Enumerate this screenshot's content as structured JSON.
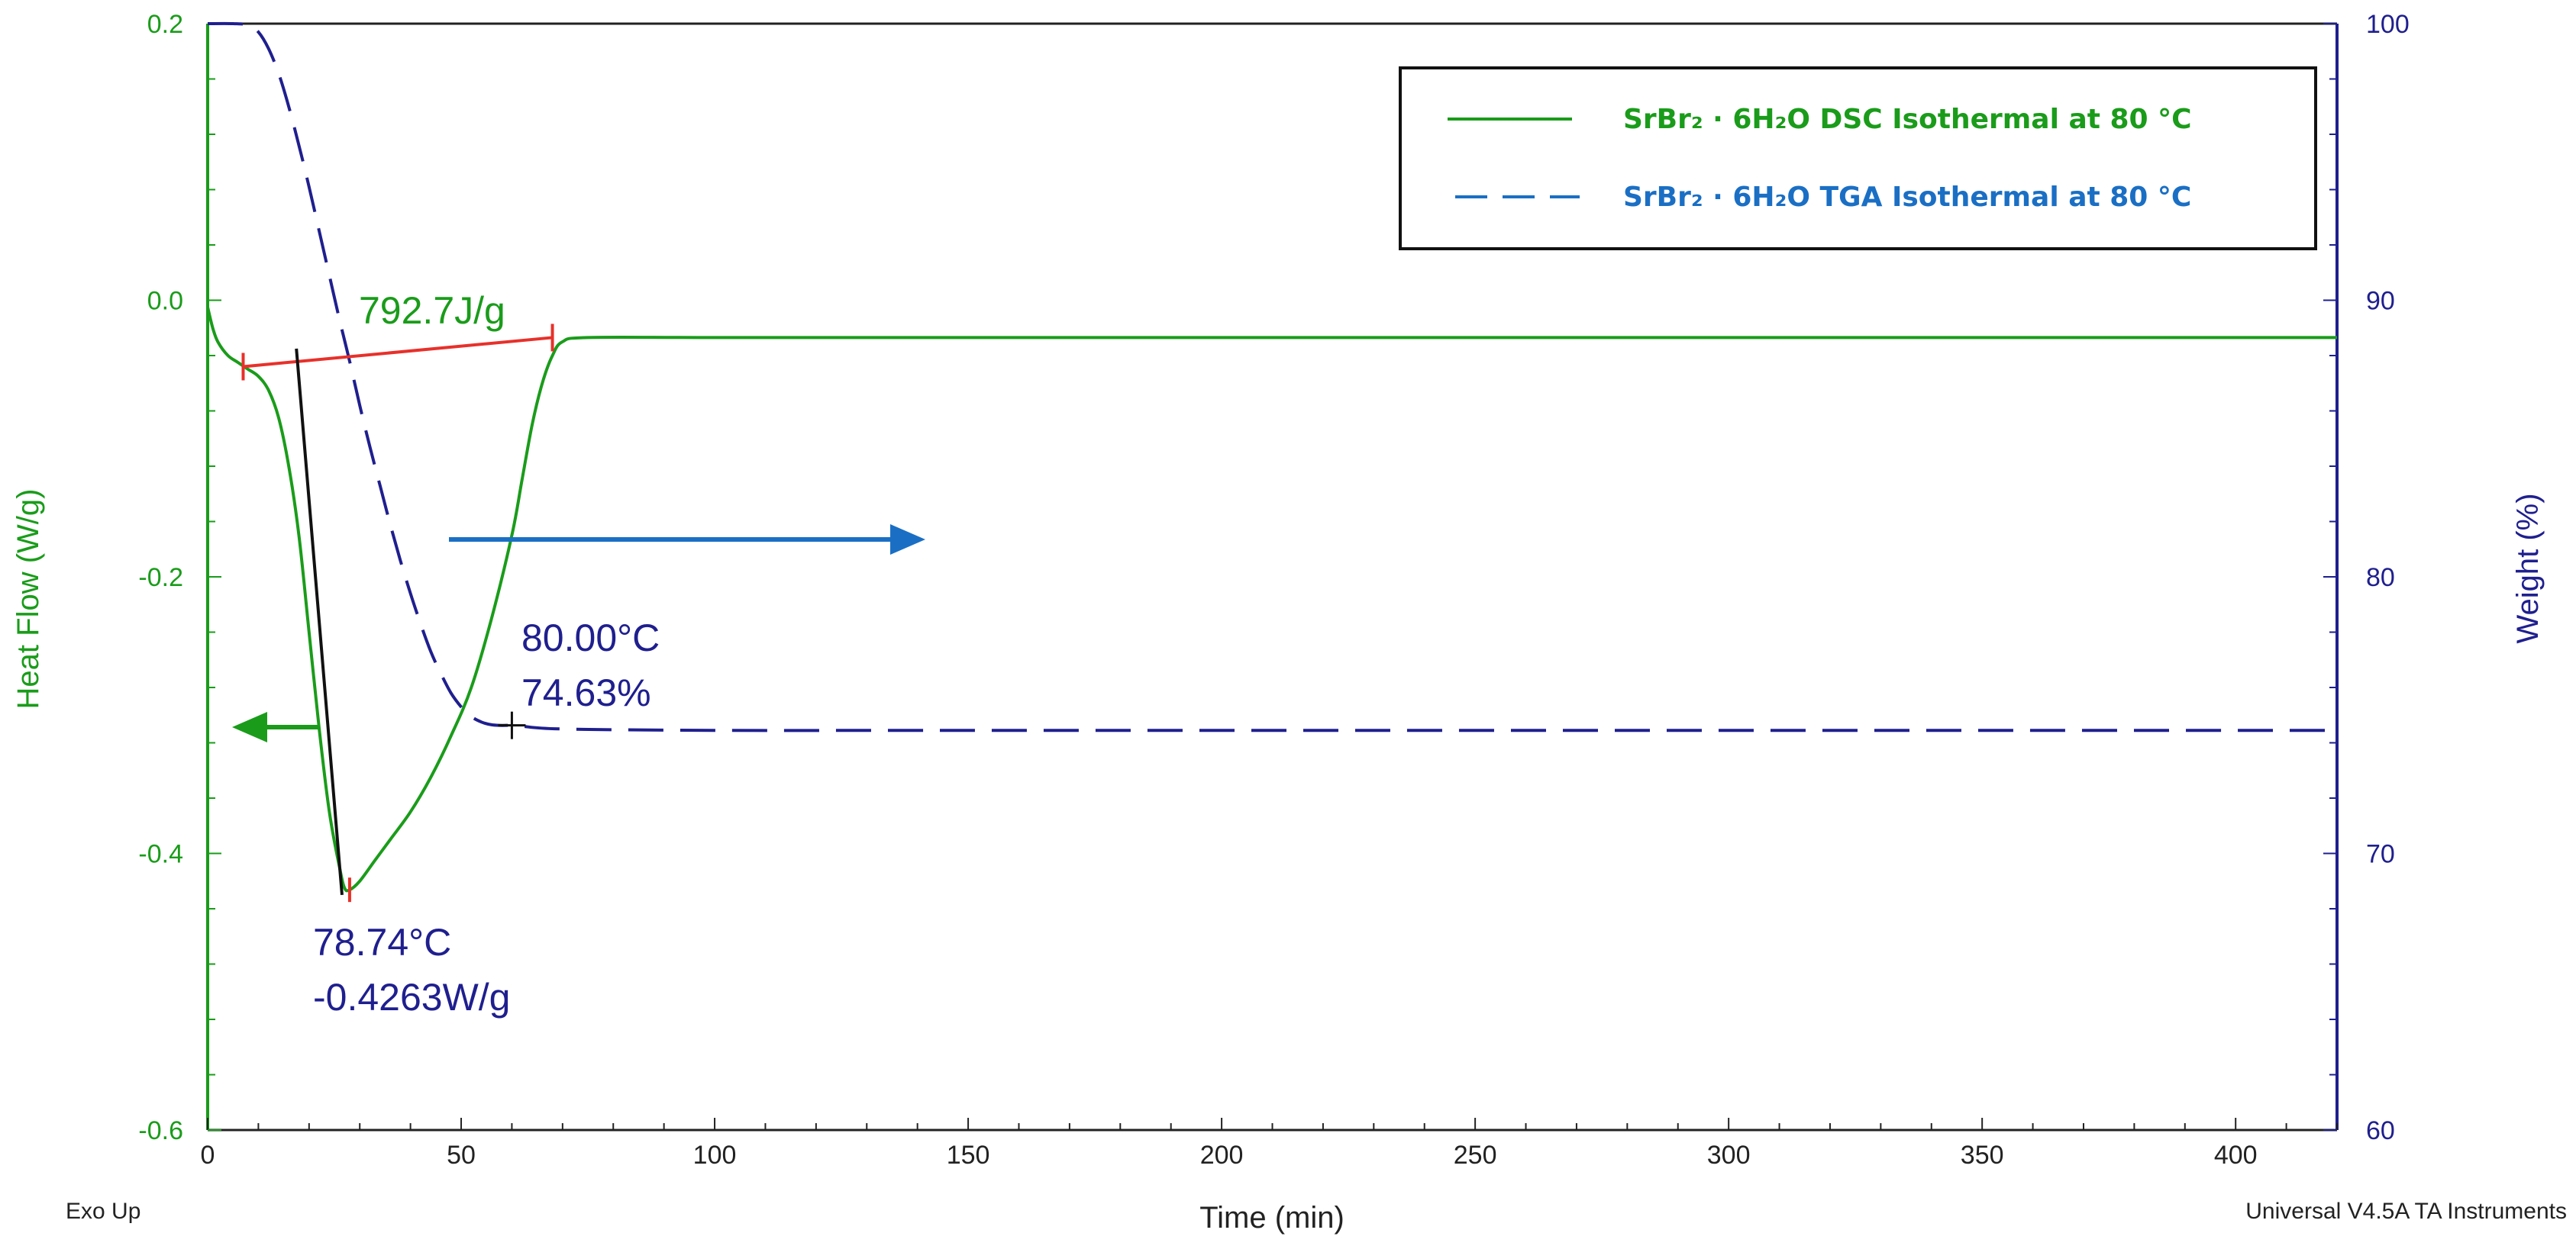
{
  "chart_data": {
    "type": "line",
    "x_axis": {
      "title": "Time (min)",
      "range": [
        0,
        420
      ],
      "ticks": [
        0,
        50,
        100,
        150,
        200,
        250,
        300,
        350,
        400
      ],
      "tick_labels": [
        "0",
        "50",
        "100",
        "150",
        "200",
        "250",
        "300",
        "350",
        "400"
      ]
    },
    "y_left": {
      "title": "Heat Flow (W/g)",
      "range": [
        -0.6,
        0.2
      ],
      "ticks": [
        0.2,
        0.0,
        -0.2,
        -0.4,
        -0.6
      ],
      "tick_labels": [
        "0.2",
        "0.0",
        "-0.2",
        "-0.4",
        "-0.6"
      ],
      "color": "#1a9c1a"
    },
    "y_right": {
      "title": "Weight (%)",
      "range": [
        60,
        100
      ],
      "ticks": [
        100,
        90,
        80,
        70,
        60
      ],
      "tick_labels": [
        "100",
        "90",
        "80",
        "70",
        "60"
      ],
      "color": "#1f1f8f"
    },
    "series": [
      {
        "name": "SrBr₂ · 6H₂O DSC Isothermal at 80 °C",
        "axis": "left",
        "style": "solid",
        "color": "#1a9c1a",
        "x": [
          0,
          1,
          2,
          4,
          6,
          8,
          10,
          12,
          14,
          16,
          18,
          20,
          22,
          24,
          26,
          27,
          28,
          30,
          33,
          36,
          40,
          44,
          48,
          52,
          56,
          60,
          62,
          64,
          66,
          68,
          70,
          75,
          100,
          150,
          200,
          250,
          300,
          350,
          400,
          420
        ],
        "y": [
          -0.005,
          -0.02,
          -0.03,
          -0.04,
          -0.045,
          -0.05,
          -0.055,
          -0.065,
          -0.085,
          -0.12,
          -0.17,
          -0.24,
          -0.31,
          -0.37,
          -0.41,
          -0.425,
          -0.4263,
          -0.42,
          -0.405,
          -0.39,
          -0.37,
          -0.345,
          -0.315,
          -0.28,
          -0.23,
          -0.17,
          -0.13,
          -0.09,
          -0.06,
          -0.04,
          -0.03,
          -0.027,
          -0.027,
          -0.027,
          -0.027,
          -0.027,
          -0.027,
          -0.027,
          -0.027,
          -0.027
        ]
      },
      {
        "name": "SrBr₂ · 6H₂O TGA Isothermal at 80 °C",
        "axis": "right",
        "style": "dashed",
        "color": "#1f1f8f",
        "x": [
          0,
          5,
          8,
          10,
          12,
          14,
          16,
          18,
          20,
          22,
          24,
          26,
          28,
          30,
          32,
          34,
          36,
          38,
          40,
          42,
          44,
          46,
          48,
          50,
          52,
          54,
          56,
          58,
          60,
          62,
          70,
          100,
          150,
          200,
          250,
          300,
          350,
          400,
          420
        ],
        "y": [
          100,
          100,
          99.95,
          99.7,
          99.1,
          98.2,
          97.0,
          95.6,
          94.1,
          92.5,
          90.9,
          89.3,
          87.8,
          86.2,
          84.7,
          83.3,
          81.9,
          80.6,
          79.4,
          78.3,
          77.3,
          76.5,
          75.8,
          75.3,
          74.95,
          74.75,
          74.65,
          74.63,
          74.63,
          74.6,
          74.5,
          74.45,
          74.45,
          74.45,
          74.45,
          74.45,
          74.45,
          74.45,
          74.45
        ]
      }
    ],
    "legend": {
      "placement": "top-right",
      "entries": [
        {
          "name": "SrBr₂ · 6H₂O DSC Isothermal at 80 °C",
          "color": "#1a9c1a",
          "style": "solid"
        },
        {
          "name": "SrBr₂ · 6H₂O TGA Isothermal at 80 °C",
          "color": "#1a6fc4",
          "style": "dashed"
        }
      ]
    },
    "annotations": {
      "enthalpy": {
        "text": "792.7J/g",
        "color": "#1a9c1a"
      },
      "tga_point": {
        "line1": "80.00°C",
        "line2": "74.63%",
        "color": "#1f1f8f",
        "x": 60,
        "y": 74.63
      },
      "dsc_peak": {
        "line1": "78.74°C",
        "line2": "-0.4263W/g",
        "color": "#1f1f8f",
        "x": 28,
        "y": -0.4263
      },
      "baseline": {
        "x": [
          7,
          68
        ],
        "y": [
          -0.048,
          -0.027
        ],
        "color": "#e8302a"
      },
      "tangent": {
        "x": [
          17.5,
          26.5
        ],
        "y": [
          -0.035,
          -0.43
        ],
        "color": "#111111"
      },
      "arrow_right_color": "#1a6fc4",
      "arrow_left_color": "#1a9c1a"
    },
    "grid": false,
    "footer": {
      "left": "Exo Up",
      "right": "Universal V4.5A TA Instruments"
    }
  }
}
